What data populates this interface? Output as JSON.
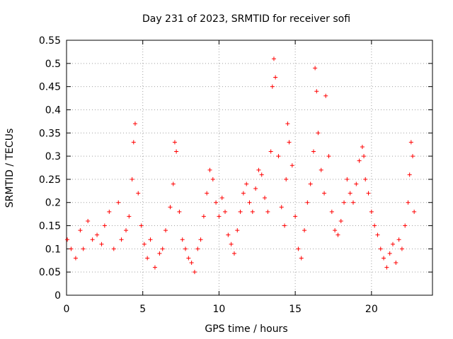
{
  "chart_data": {
    "type": "scatter",
    "title": "Day 231 of 2023, SRMTID for receiver sofi",
    "xlabel": "GPS time / hours",
    "ylabel": "SRMTID / TECUs",
    "xlim": [
      0,
      24
    ],
    "ylim": [
      0,
      0.55
    ],
    "xticks": [
      0,
      5,
      10,
      15,
      20
    ],
    "yticks": [
      0,
      0.05,
      0.1,
      0.15,
      0.2,
      0.25,
      0.3,
      0.35,
      0.4,
      0.45,
      0.5,
      0.55
    ],
    "grid": true,
    "marker": "+",
    "color": "#ff0000",
    "series": [
      {
        "x": [
          0.05,
          0.3,
          0.6,
          0.9,
          1.1,
          1.4,
          1.7,
          2.0,
          2.3,
          2.5,
          2.8,
          3.1,
          3.4,
          3.6,
          3.9,
          4.1,
          4.3,
          4.4,
          4.5,
          4.7,
          4.9,
          5.1,
          5.3,
          5.5,
          5.8,
          6.1,
          6.3,
          6.5,
          6.8,
          7.0,
          7.1,
          7.2,
          7.4,
          7.6,
          7.8,
          8.0,
          8.2,
          8.4,
          8.6,
          8.8,
          9.0,
          9.2,
          9.4,
          9.6,
          9.8,
          10.0,
          10.2,
          10.4,
          10.6,
          10.8,
          11.0,
          11.2,
          11.4,
          11.6,
          11.8,
          12.0,
          12.2,
          12.4,
          12.6,
          12.8,
          13.0,
          13.2,
          13.4,
          13.5,
          13.6,
          13.7,
          13.9,
          14.1,
          14.3,
          14.4,
          14.5,
          14.6,
          14.8,
          15.0,
          15.2,
          15.4,
          15.6,
          15.8,
          16.0,
          16.2,
          16.3,
          16.4,
          16.5,
          16.7,
          16.9,
          17.0,
          17.2,
          17.4,
          17.6,
          17.8,
          18.0,
          18.2,
          18.4,
          18.6,
          18.8,
          19.0,
          19.2,
          19.4,
          19.5,
          19.6,
          19.8,
          20.0,
          20.2,
          20.4,
          20.6,
          20.8,
          21.0,
          21.2,
          21.4,
          21.6,
          21.8,
          22.0,
          22.2,
          22.4,
          22.5,
          22.6,
          22.7,
          22.8
        ],
        "y": [
          0.12,
          0.1,
          0.08,
          0.14,
          0.1,
          0.16,
          0.12,
          0.13,
          0.11,
          0.15,
          0.18,
          0.1,
          0.2,
          0.12,
          0.14,
          0.17,
          0.25,
          0.33,
          0.37,
          0.22,
          0.15,
          0.11,
          0.08,
          0.12,
          0.06,
          0.09,
          0.1,
          0.14,
          0.19,
          0.24,
          0.33,
          0.31,
          0.18,
          0.12,
          0.1,
          0.08,
          0.07,
          0.05,
          0.1,
          0.12,
          0.17,
          0.22,
          0.27,
          0.25,
          0.2,
          0.17,
          0.21,
          0.18,
          0.13,
          0.11,
          0.09,
          0.14,
          0.18,
          0.22,
          0.24,
          0.2,
          0.18,
          0.23,
          0.27,
          0.26,
          0.21,
          0.18,
          0.31,
          0.45,
          0.51,
          0.47,
          0.3,
          0.19,
          0.15,
          0.25,
          0.37,
          0.33,
          0.28,
          0.17,
          0.1,
          0.08,
          0.14,
          0.2,
          0.24,
          0.31,
          0.49,
          0.44,
          0.35,
          0.27,
          0.22,
          0.43,
          0.3,
          0.18,
          0.14,
          0.13,
          0.16,
          0.2,
          0.25,
          0.22,
          0.2,
          0.24,
          0.29,
          0.32,
          0.3,
          0.25,
          0.22,
          0.18,
          0.15,
          0.13,
          0.1,
          0.08,
          0.06,
          0.09,
          0.11,
          0.07,
          0.12,
          0.1,
          0.15,
          0.2,
          0.26,
          0.33,
          0.3,
          0.18
        ]
      }
    ]
  }
}
